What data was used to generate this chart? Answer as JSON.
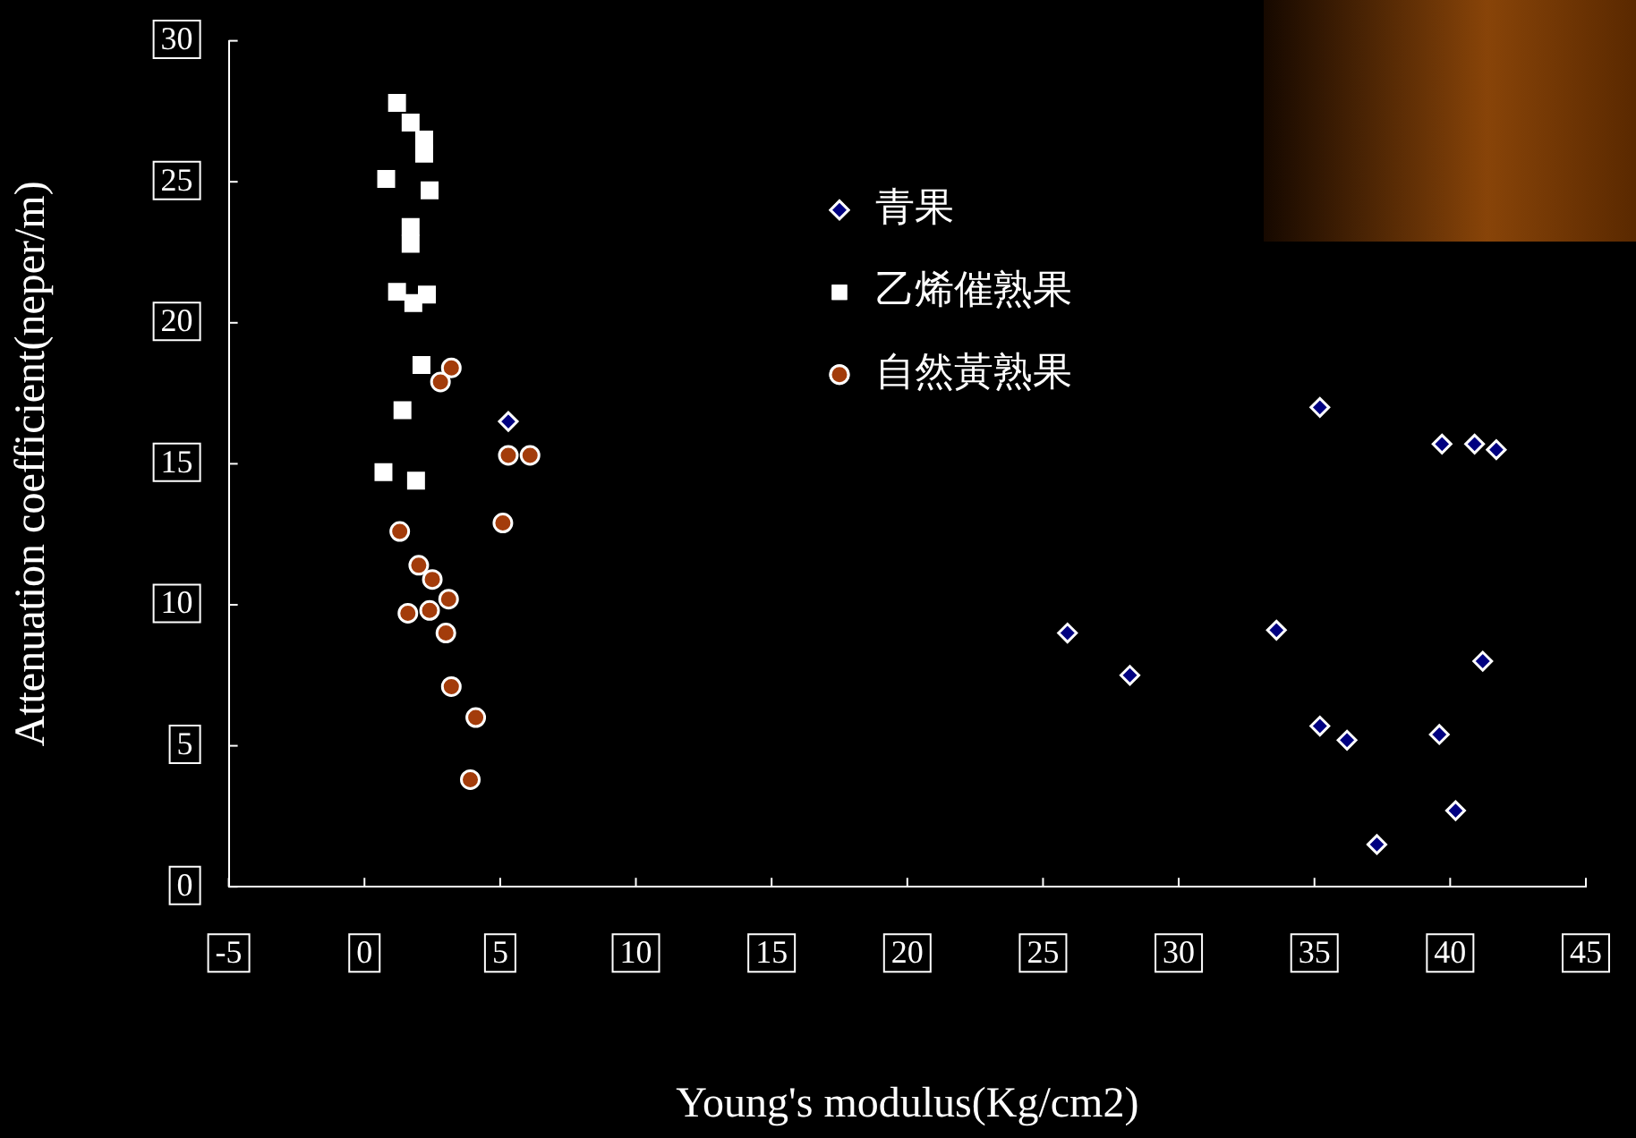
{
  "chart_data": {
    "type": "scatter",
    "xlabel": "Young's modulus(Kg/cm2)",
    "ylabel": "Attenuation coefficient(neper/m)",
    "xlim": [
      -5,
      45
    ],
    "ylim": [
      0,
      30
    ],
    "xticks": [
      -5,
      0,
      5,
      10,
      15,
      20,
      25,
      30,
      35,
      40,
      45
    ],
    "yticks": [
      0,
      5,
      10,
      15,
      20,
      25,
      30
    ],
    "legend": "top",
    "series": [
      {
        "name": "青果",
        "color": "#000080",
        "marker": "diamond",
        "x": [
          5.3,
          35.2,
          39.7,
          40.9,
          41.7,
          25.9,
          28.2,
          33.6,
          41.2,
          35.2,
          36.2,
          39.6,
          40.2,
          37.3
        ],
        "values": [
          16.5,
          17.0,
          15.7,
          15.7,
          15.5,
          9.0,
          7.5,
          9.1,
          8.0,
          5.7,
          5.2,
          5.4,
          2.7,
          1.5
        ]
      },
      {
        "name": "乙烯催熟果",
        "color": "#ffffff",
        "marker": "square",
        "x": [
          1.2,
          1.7,
          2.2,
          2.2,
          0.8,
          2.4,
          1.7,
          1.7,
          1.2,
          1.8,
          2.3,
          2.1,
          1.4,
          0.7,
          1.9
        ],
        "values": [
          27.8,
          27.1,
          26.5,
          26.0,
          25.1,
          24.7,
          23.4,
          22.8,
          21.1,
          20.7,
          21.0,
          18.5,
          16.9,
          14.7,
          14.4
        ]
      },
      {
        "name": "自然黃熟果",
        "color": "#a33c0b",
        "marker": "circle",
        "x": [
          3.2,
          2.8,
          5.3,
          6.1,
          5.1,
          1.3,
          2.0,
          2.5,
          3.1,
          1.6,
          2.4,
          3.0,
          3.2,
          4.1,
          3.9
        ],
        "values": [
          18.4,
          17.9,
          15.3,
          15.3,
          12.9,
          12.6,
          11.4,
          10.9,
          10.2,
          9.7,
          9.8,
          9.0,
          7.1,
          6.0,
          3.8
        ]
      }
    ]
  }
}
